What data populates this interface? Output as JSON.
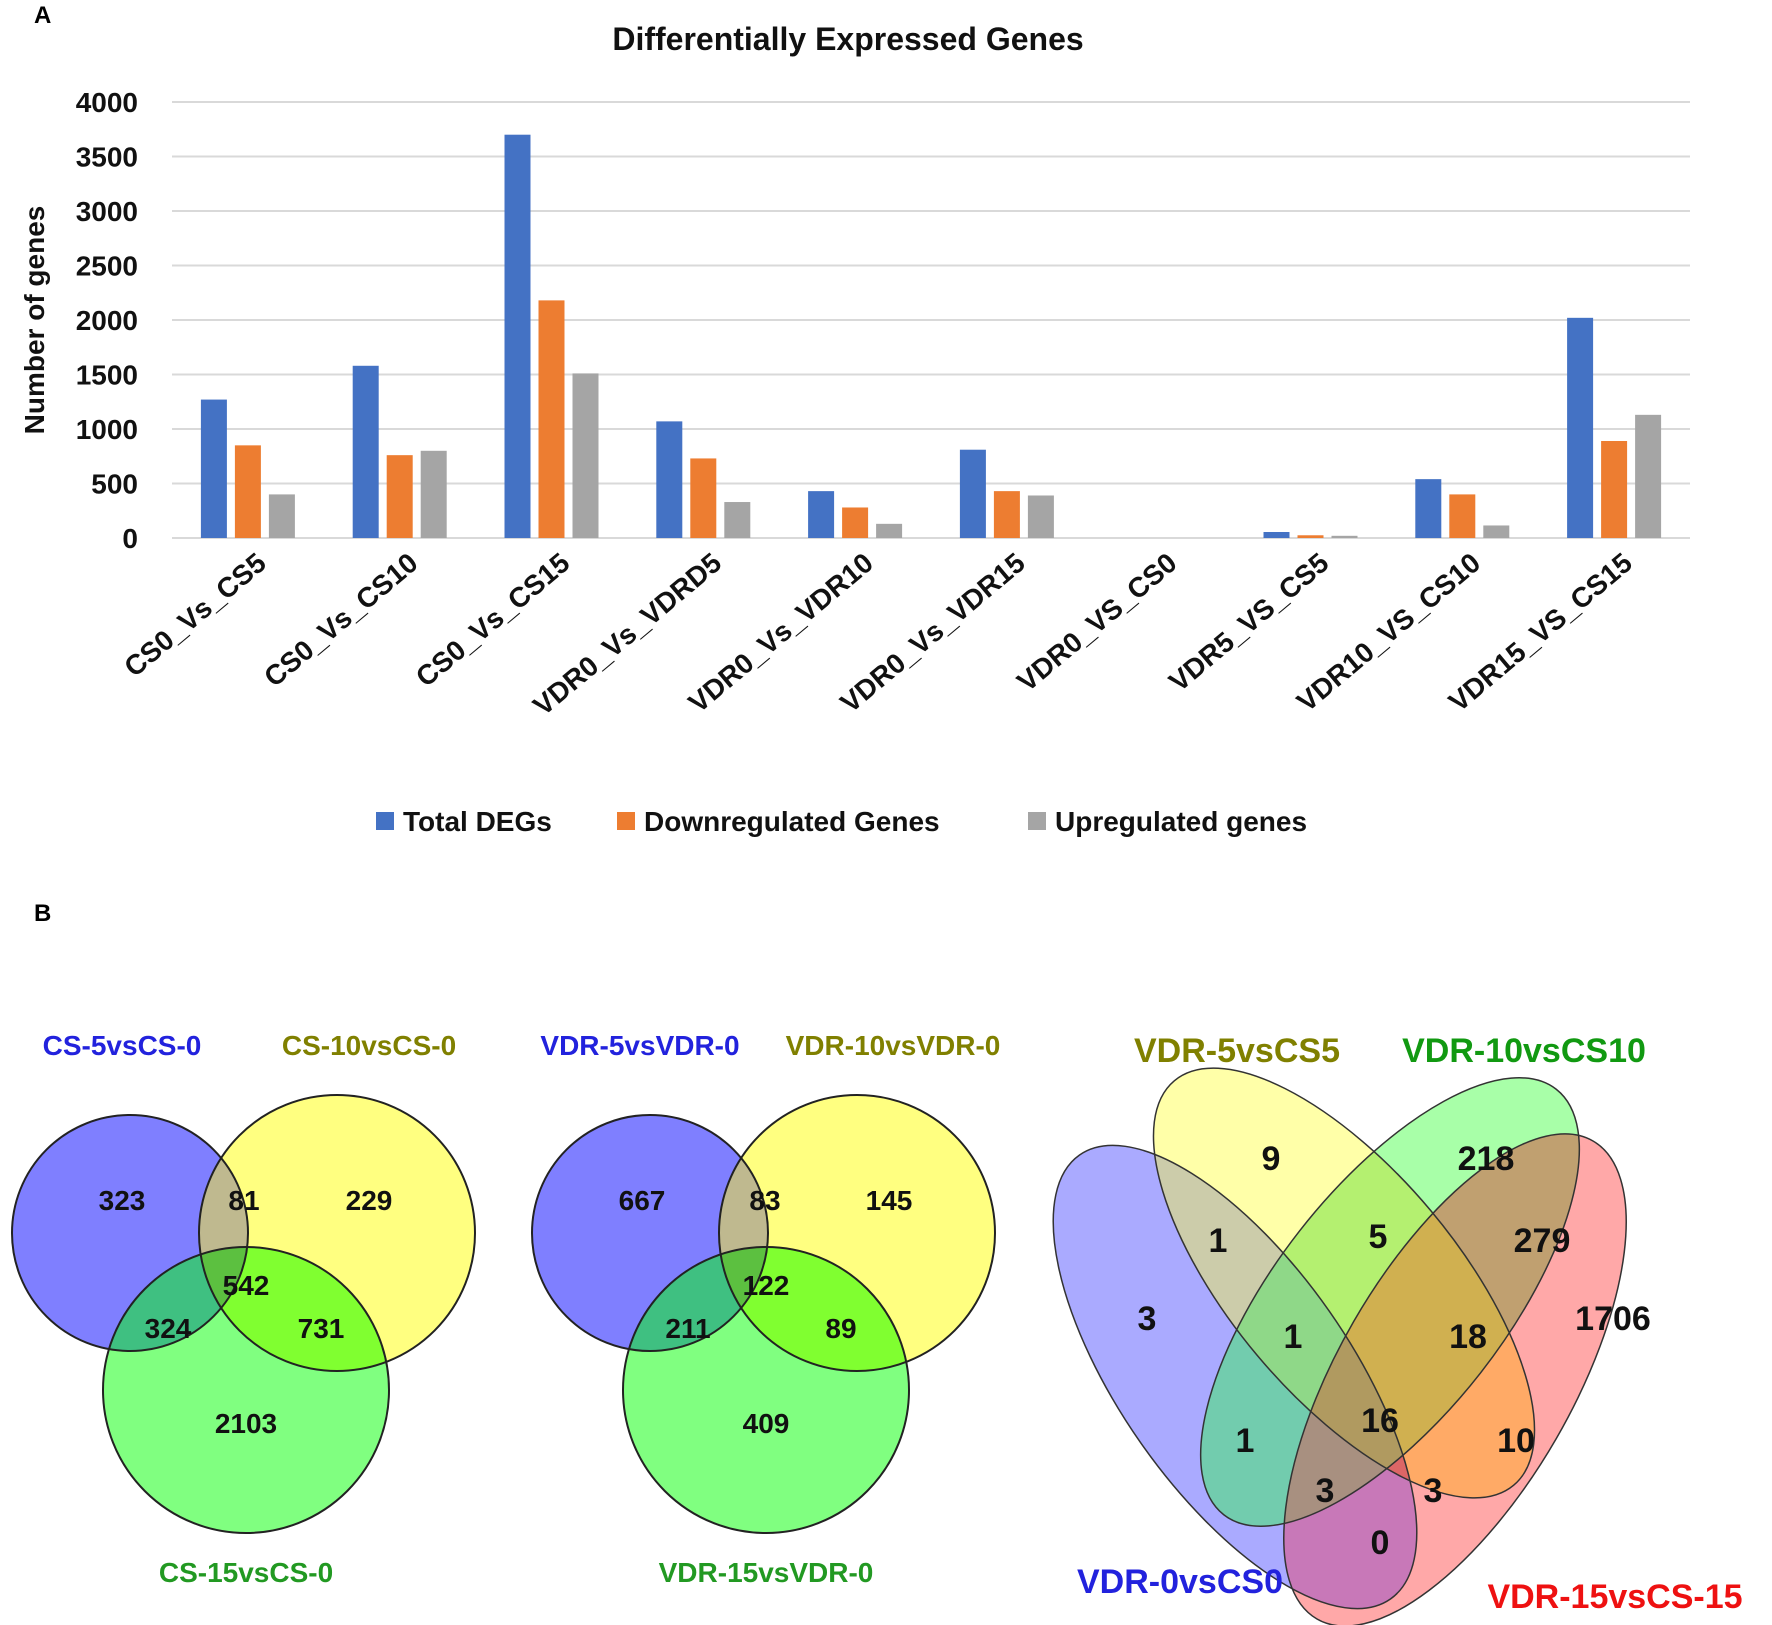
{
  "panel_labels": {
    "a": "A",
    "b": "B"
  },
  "chart_data": {
    "type": "bar",
    "title": "Differentially Expressed Genes",
    "xlabel": "",
    "ylabel": "Number of  genes",
    "ylim": [
      0,
      4000
    ],
    "yticks": [
      0,
      500,
      1000,
      1500,
      2000,
      2500,
      3000,
      3500,
      4000
    ],
    "ytick_labels": [
      "0",
      "500",
      "1000",
      "1500",
      "2000",
      "2500",
      "3000",
      "3500",
      "4000"
    ],
    "grid": true,
    "legend_position": "bottom",
    "categories": [
      "CS0_Vs_CS5",
      "CS0_Vs_CS10",
      "CS0_Vs_CS15",
      "VDR0_Vs_VDRD5",
      "VDR0_Vs_VDR10",
      "VDR0_Vs_VDR15",
      "VDR0_VS_CS0",
      "VDR5_VS_CS5",
      "VDR10_VS_CS10",
      "VDR15_VS_CS15"
    ],
    "series": [
      {
        "name": "Total DEGs",
        "color": "#4472C4",
        "values": [
          1270,
          1580,
          3700,
          1070,
          430,
          810,
          0,
          55,
          540,
          2020
        ]
      },
      {
        "name": "Downregulated Genes",
        "color": "#ED7D31",
        "values": [
          850,
          760,
          2180,
          730,
          280,
          430,
          0,
          25,
          400,
          890
        ]
      },
      {
        "name": "Upregulated genes",
        "color": "#A5A5A5",
        "values": [
          400,
          800,
          1510,
          330,
          130,
          390,
          0,
          20,
          115,
          1130
        ]
      }
    ]
  },
  "venn1": {
    "labels": {
      "a": "CS-5vsCS-0",
      "b": "CS-10vsCS-0",
      "c": "CS-15vsCS-0"
    },
    "label_colors": {
      "a": "#2222DD",
      "b": "#808000",
      "c": "#229922"
    },
    "counts": {
      "a_only": "323",
      "ab": "81",
      "b_only": "229",
      "abc": "542",
      "ac": "324",
      "bc": "731",
      "c_only": "2103"
    }
  },
  "venn2": {
    "labels": {
      "a": "VDR-5vsVDR-0",
      "b": "VDR-10vsVDR-0",
      "c": "VDR-15vsVDR-0"
    },
    "label_colors": {
      "a": "#2222DD",
      "b": "#808000",
      "c": "#229922"
    },
    "counts": {
      "a_only": "667",
      "ab": "83",
      "b_only": "145",
      "abc": "122",
      "ac": "211",
      "bc": "89",
      "c_only": "409"
    }
  },
  "venn3": {
    "labels": {
      "yellow": "VDR-5vsCS5",
      "green": "VDR-10vsCS10",
      "blue": "VDR-0vsCS0",
      "red": "VDR-15vsCS-15"
    },
    "label_colors": {
      "yellow": "#808000",
      "green": "#119911",
      "blue": "#2222DD",
      "red": "#EE1111"
    },
    "counts": {
      "yellow_only": "9",
      "green_only": "218",
      "blue_only": "3",
      "red_only": "1706",
      "blue_yellow": "1",
      "yellow_green": "5",
      "green_red": "279",
      "blue_yellow_green": "1",
      "yellow_green_red": "18",
      "all_four": "16",
      "blue_green": "1",
      "yellow_red": "10",
      "blue_green_red": "3",
      "blue_yellow_red": "3",
      "blue_red": "0"
    }
  }
}
